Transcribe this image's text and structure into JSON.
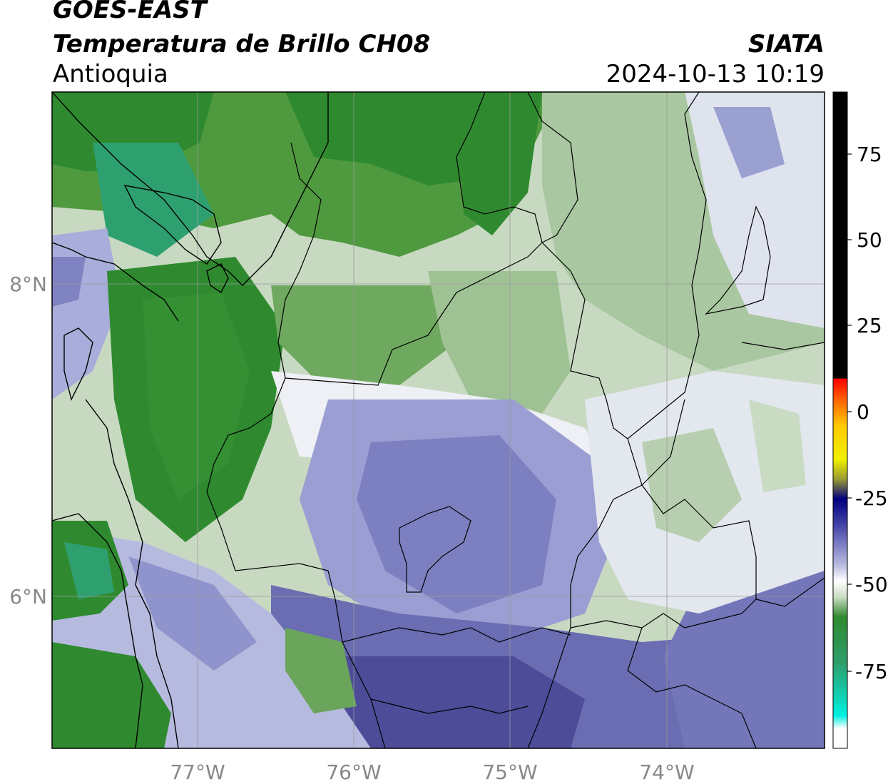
{
  "header": {
    "source": "GOES-EAST",
    "title": "Temperatura de Brillo CH08",
    "region": "Antioquia",
    "agency": "SIATA",
    "datetime": "2024-10-13 10:19"
  },
  "map": {
    "lon_ticks": [
      "77°W",
      "76°W",
      "75°W",
      "74°W"
    ],
    "lat_ticks": [
      "8°N",
      "6°N"
    ],
    "colors": {
      "green_dark": "#2e7d1f",
      "green_mid": "#5a9a48",
      "green_light": "#c9dcc3",
      "teal": "#27a37a",
      "white": "#f4f6f8",
      "lavender": "#b9bddf",
      "purple": "#7476b8",
      "purple_dark": "#4c4c99",
      "border": "#000000",
      "grid": "#999999"
    }
  },
  "colorbar": {
    "ticks": [
      "75",
      "50",
      "25",
      "0",
      "-25",
      "-50",
      "-75"
    ],
    "colors": {
      "black": "#000000",
      "red": "#ff2a00",
      "orange": "#ff9d00",
      "yellow": "#ffe600",
      "navy": "#0a0a7a",
      "white": "#ffffff",
      "green": "#2f8a2f",
      "cyan": "#00e5d4"
    }
  }
}
